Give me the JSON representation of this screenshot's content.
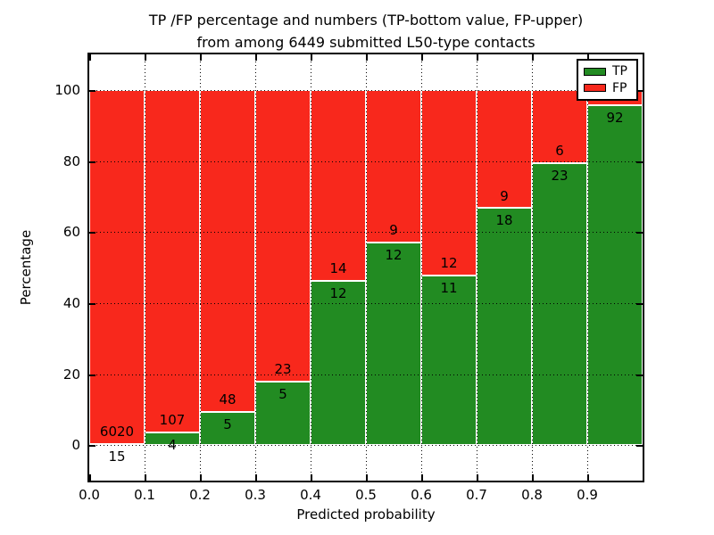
{
  "chart_data": {
    "type": "bar",
    "stacked": true,
    "normalized_to_percent": true,
    "title_lines": [
      "TP /FP percentage and numbers (TP-bottom value, FP-upper)",
      "from among 6449 submitted L50-type contacts"
    ],
    "xlabel": "Predicted probability",
    "ylabel": "Percentage",
    "total_contacts": 6449,
    "grid": "dotted",
    "legend_position": "upper right",
    "x_axis": {
      "lim": [
        0.0,
        1.0
      ],
      "tick_labels": [
        "0.0",
        "0.1",
        "0.2",
        "0.3",
        "0.4",
        "0.5",
        "0.6",
        "0.7",
        "0.8",
        "0.9"
      ]
    },
    "y_axis": {
      "lim": [
        -10,
        110
      ],
      "ticks": [
        0,
        20,
        40,
        60,
        80,
        100
      ]
    },
    "colors": {
      "tp": "#228b22",
      "fp": "#f8281c",
      "bar_edge": "#ffffff",
      "axis": "#000000"
    },
    "legend": [
      {
        "label": "TP",
        "color": "#228b22"
      },
      {
        "label": "FP",
        "color": "#f8281c"
      }
    ],
    "bars": [
      {
        "bin": "0.0-0.1",
        "tp": 15,
        "fp": 6020,
        "tp_pct": 0.25
      },
      {
        "bin": "0.1-0.2",
        "tp": 4,
        "fp": 107,
        "tp_pct": 3.6
      },
      {
        "bin": "0.2-0.3",
        "tp": 5,
        "fp": 48,
        "tp_pct": 9.4
      },
      {
        "bin": "0.3-0.4",
        "tp": 5,
        "fp": 23,
        "tp_pct": 17.9
      },
      {
        "bin": "0.4-0.5",
        "tp": 12,
        "fp": 14,
        "tp_pct": 46.2
      },
      {
        "bin": "0.5-0.6",
        "tp": 12,
        "fp": 9,
        "tp_pct": 57.1
      },
      {
        "bin": "0.6-0.7",
        "tp": 11,
        "fp": 12,
        "tp_pct": 47.8
      },
      {
        "bin": "0.7-0.8",
        "tp": 18,
        "fp": 9,
        "tp_pct": 66.7
      },
      {
        "bin": "0.8-0.9",
        "tp": 23,
        "fp": 6,
        "tp_pct": 79.3
      },
      {
        "bin": "0.9-1.0",
        "tp": 92,
        "fp": null,
        "fp_label_visible": false,
        "tp_pct": 95.8
      }
    ]
  }
}
